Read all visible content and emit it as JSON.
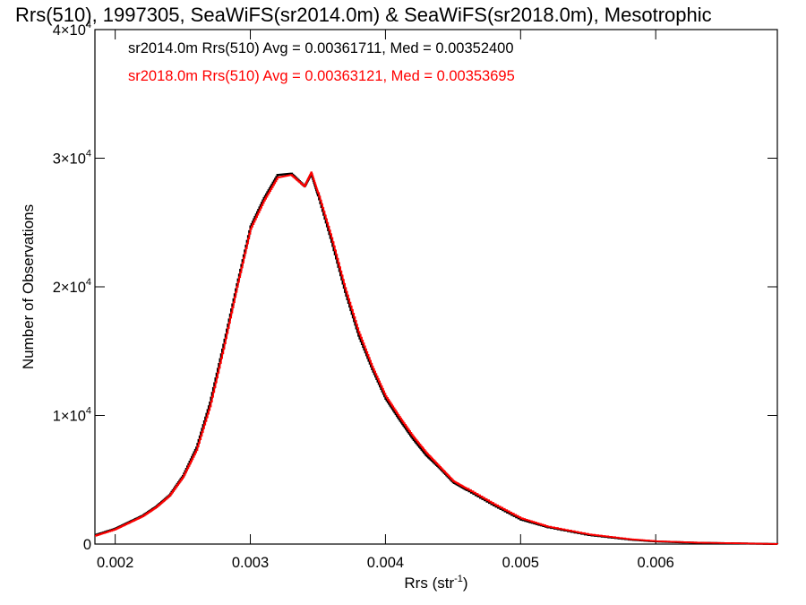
{
  "chart_data": {
    "type": "line",
    "title": "Rrs(510), 1997305, SeaWiFS(sr2014.0m) & SeaWiFS(sr2018.0m), Mesotrophic",
    "xlabel": "Rrs (str",
    "xlabel_sup": "-1",
    "xlabel_close": ")",
    "ylabel": "Number of Observations",
    "xlim": [
      0.00185,
      0.0069
    ],
    "ylim": [
      0,
      40000
    ],
    "x_ticks": [
      {
        "value": 0.002,
        "label": "0.002"
      },
      {
        "value": 0.003,
        "label": "0.003"
      },
      {
        "value": 0.004,
        "label": "0.004"
      },
      {
        "value": 0.005,
        "label": "0.005"
      },
      {
        "value": 0.006,
        "label": "0.006"
      }
    ],
    "y_ticks": [
      {
        "value": 0,
        "mantissa": "0",
        "exponent": ""
      },
      {
        "value": 10000,
        "mantissa": "1×10",
        "exponent": "4"
      },
      {
        "value": 20000,
        "mantissa": "2×10",
        "exponent": "4"
      },
      {
        "value": 30000,
        "mantissa": "3×10",
        "exponent": "4"
      },
      {
        "value": 40000,
        "mantissa": "4×10",
        "exponent": "4"
      }
    ],
    "grid": false,
    "legend_position": "top-left",
    "histogram_style": "step",
    "x": [
      0.00185,
      0.002,
      0.0021,
      0.0022,
      0.0023,
      0.0024,
      0.0025,
      0.0026,
      0.0027,
      0.0028,
      0.0029,
      0.003,
      0.0031,
      0.0032,
      0.0033,
      0.0034,
      0.00345,
      0.0035,
      0.0036,
      0.0037,
      0.0038,
      0.0039,
      0.004,
      0.0041,
      0.0042,
      0.0043,
      0.0044,
      0.0045,
      0.0046,
      0.0048,
      0.005,
      0.0052,
      0.0055,
      0.0058,
      0.006,
      0.0063,
      0.0066,
      0.0069
    ],
    "series": [
      {
        "name": "sr2014.0m",
        "label": "sr2014.0m Rrs(510) Avg = 0.00361711, Med = 0.00352400",
        "color": "#000000",
        "values": [
          700,
          1200,
          1700,
          2200,
          2900,
          3800,
          5300,
          7500,
          11000,
          15500,
          20200,
          24700,
          26900,
          28700,
          28800,
          27800,
          28800,
          27100,
          23500,
          19600,
          16200,
          13600,
          11300,
          9700,
          8200,
          6900,
          5900,
          4800,
          4200,
          3000,
          1900,
          1300,
          700,
          350,
          200,
          100,
          50,
          0
        ]
      },
      {
        "name": "sr2018.0m",
        "label": "sr2018.0m Rrs(510) Avg = 0.00363121, Med = 0.00353695",
        "color": "#ff0000",
        "values": [
          650,
          1150,
          1650,
          2150,
          2850,
          3750,
          5200,
          7300,
          10700,
          15200,
          20000,
          24500,
          26700,
          28500,
          28700,
          27800,
          28900,
          27300,
          23800,
          19900,
          16500,
          13800,
          11500,
          9900,
          8400,
          7100,
          6000,
          4900,
          4300,
          3100,
          2000,
          1350,
          750,
          380,
          220,
          110,
          60,
          0
        ]
      }
    ]
  }
}
